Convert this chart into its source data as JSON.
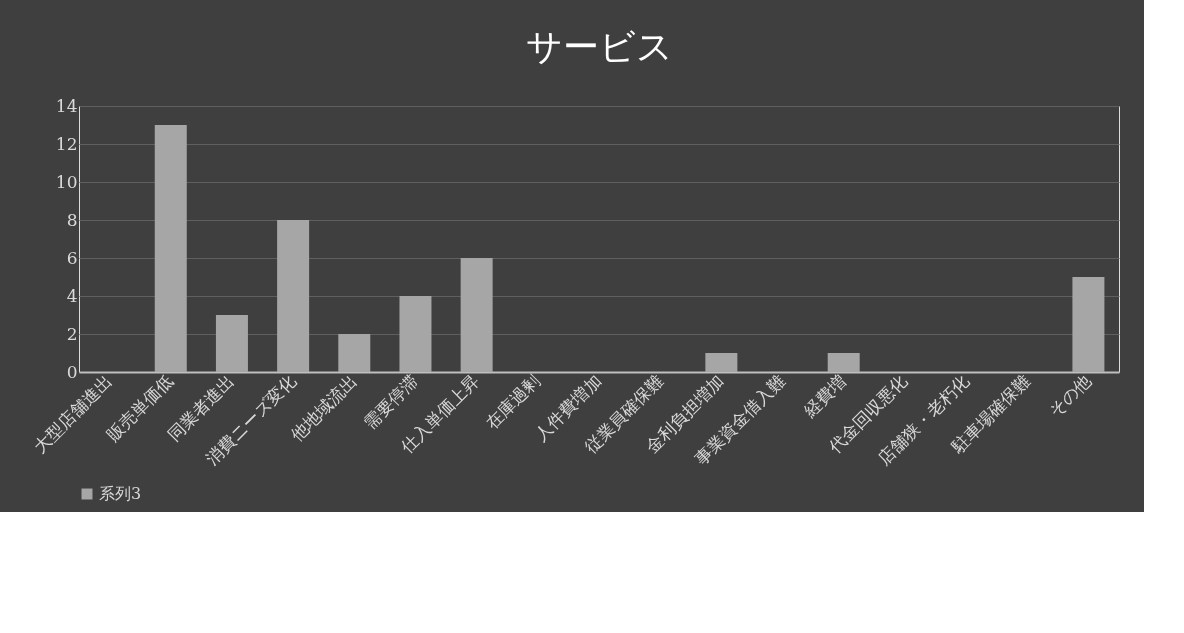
{
  "chart_data": {
    "type": "bar",
    "title": "サービス",
    "categories": [
      "大型店舗進出",
      "販売単価低",
      "同業者進出",
      "消費ニーズ変化",
      "他地域流出",
      "需要停滞",
      "仕入単価上昇",
      "在庫過剰",
      "人件費増加",
      "従業員確保難",
      "金利負担増加",
      "事業資金借入難",
      "経費増",
      "代金回収悪化",
      "店舗狭・老朽化",
      "駐車場確保難",
      "その他"
    ],
    "series": [
      {
        "name": "系列3",
        "color": "#a6a6a6",
        "values": [
          0,
          13,
          3,
          8,
          2,
          4,
          6,
          0,
          0,
          0,
          1,
          0,
          1,
          0,
          0,
          0,
          5
        ]
      }
    ],
    "ylim": [
      0,
      14
    ],
    "yticks": [
      0,
      2,
      4,
      6,
      8,
      10,
      12,
      14
    ],
    "grid": "y",
    "legend": "bottom"
  }
}
